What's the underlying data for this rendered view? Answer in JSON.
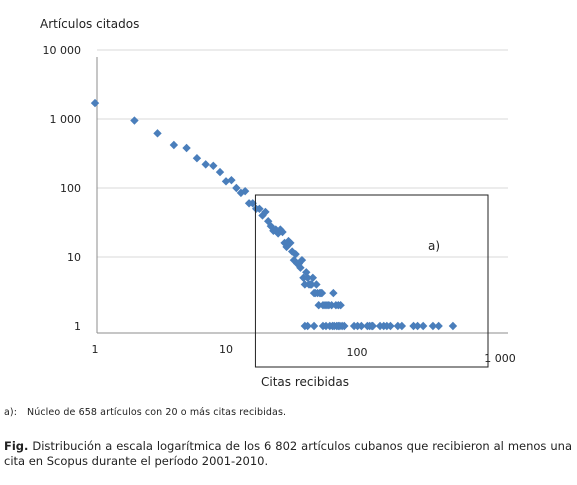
{
  "chart_data": {
    "type": "scatter",
    "title": "",
    "xlabel": "Citas recibidas",
    "ylabel": "Artículos citados",
    "x_scale": "log",
    "y_scale": "log",
    "xlim": [
      1,
      1000
    ],
    "ylim": [
      1,
      10000
    ],
    "x_ticks": [
      {
        "value": 1,
        "label": "1"
      },
      {
        "value": 10,
        "label": "10"
      },
      {
        "value": 100,
        "label": "100"
      },
      {
        "value": 1000,
        "label": "1 000"
      }
    ],
    "y_ticks": [
      {
        "value": 1,
        "label": "1"
      },
      {
        "value": 10,
        "label": "10"
      },
      {
        "value": 100,
        "label": "100"
      },
      {
        "value": 1000,
        "label": "1 000"
      },
      {
        "value": 10000,
        "label": "10 000"
      }
    ],
    "grid": "horizontal",
    "legend": "none",
    "marker_color": "#4a7ebb",
    "series": [
      {
        "points": [
          [
            1,
            1700
          ],
          [
            2,
            950
          ],
          [
            3,
            620
          ],
          [
            4,
            420
          ],
          [
            5,
            380
          ],
          [
            6,
            270
          ],
          [
            7,
            220
          ],
          [
            8,
            210
          ],
          [
            9,
            170
          ],
          [
            10,
            125
          ],
          [
            11,
            130
          ],
          [
            12,
            100
          ],
          [
            13,
            85
          ],
          [
            14,
            90
          ],
          [
            15,
            60
          ],
          [
            16,
            60
          ],
          [
            17,
            50
          ],
          [
            18,
            50
          ],
          [
            19,
            40
          ],
          [
            20,
            45
          ],
          [
            21,
            33
          ],
          [
            22,
            28
          ],
          [
            23,
            24
          ],
          [
            24,
            25
          ],
          [
            25,
            22
          ],
          [
            26,
            25
          ],
          [
            27,
            23
          ],
          [
            28,
            16
          ],
          [
            29,
            14
          ],
          [
            30,
            17
          ],
          [
            31,
            16
          ],
          [
            32,
            12
          ],
          [
            33,
            9
          ],
          [
            34,
            11
          ],
          [
            35,
            8
          ],
          [
            36,
            8
          ],
          [
            37,
            7
          ],
          [
            38,
            9
          ],
          [
            39,
            5
          ],
          [
            40,
            4
          ],
          [
            41,
            6
          ],
          [
            42,
            5
          ],
          [
            43,
            4
          ],
          [
            44,
            4
          ],
          [
            45,
            4
          ],
          [
            46,
            5
          ],
          [
            47,
            3
          ],
          [
            48,
            3
          ],
          [
            49,
            4
          ],
          [
            50,
            3
          ],
          [
            51,
            2
          ],
          [
            52,
            3
          ],
          [
            53,
            3
          ],
          [
            54,
            3
          ],
          [
            55,
            2
          ],
          [
            57,
            2
          ],
          [
            59,
            2
          ],
          [
            61,
            2
          ],
          [
            64,
            2
          ],
          [
            66,
            3
          ],
          [
            69,
            2
          ],
          [
            72,
            2
          ],
          [
            75,
            2
          ],
          [
            40,
            1
          ],
          [
            42,
            1
          ],
          [
            47,
            1
          ],
          [
            55,
            1
          ],
          [
            58,
            1
          ],
          [
            62,
            1
          ],
          [
            65,
            1
          ],
          [
            67,
            1
          ],
          [
            70,
            1
          ],
          [
            72,
            1
          ],
          [
            74,
            1
          ],
          [
            77,
            1
          ],
          [
            80,
            1
          ],
          [
            95,
            1
          ],
          [
            101,
            1
          ],
          [
            108,
            1
          ],
          [
            120,
            1
          ],
          [
            125,
            1
          ],
          [
            130,
            1
          ],
          [
            132,
            1
          ],
          [
            150,
            1
          ],
          [
            160,
            1
          ],
          [
            169,
            1
          ],
          [
            180,
            1
          ],
          [
            205,
            1
          ],
          [
            220,
            1
          ],
          [
            270,
            1
          ],
          [
            290,
            1
          ],
          [
            320,
            1
          ],
          [
            380,
            1
          ],
          [
            420,
            1
          ],
          [
            540,
            1
          ]
        ]
      }
    ],
    "annotation": {
      "label": "a)",
      "x_range": [
        20,
        1000
      ],
      "y_range": [
        1,
        100
      ]
    }
  },
  "note": {
    "marker": "a):",
    "text": "Núcleo de 658 artículos con 20 o más citas recibidas."
  },
  "caption": {
    "prefix": "Fig.",
    "text": " Distribución a escala logarítmica de los 6 802 artículos cubanos que recibieron al menos una cita en Scopus durante el período 2001-2010."
  }
}
